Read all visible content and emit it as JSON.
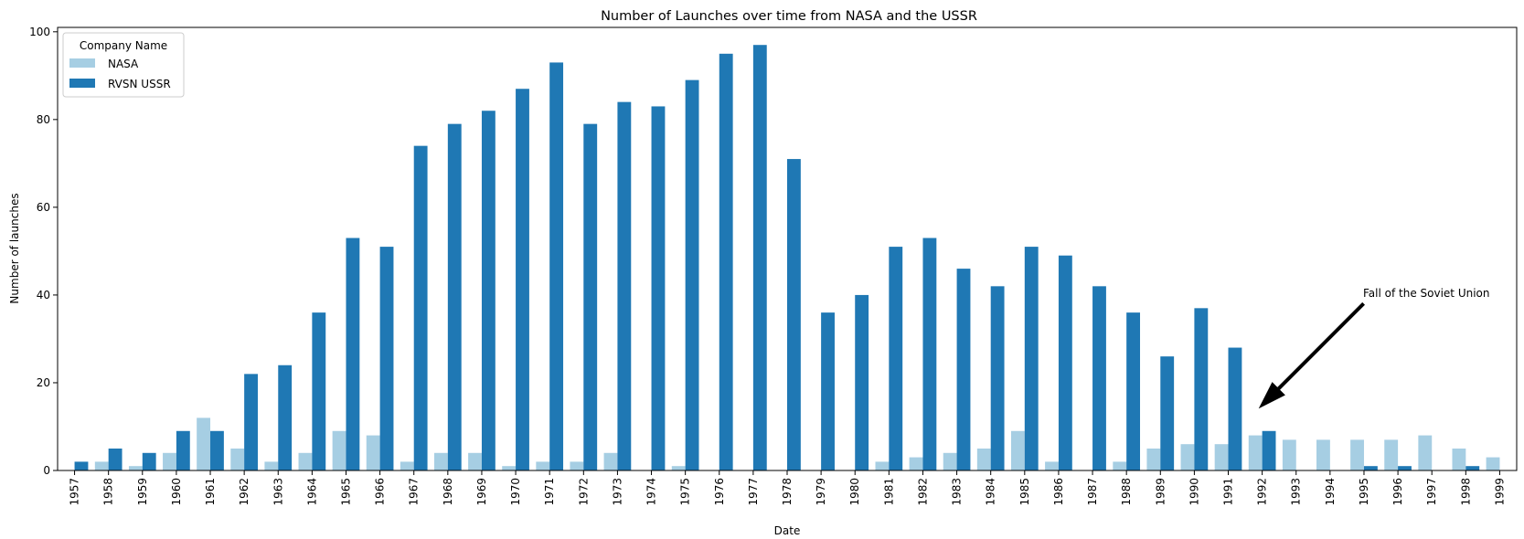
{
  "chart_data": {
    "type": "bar",
    "title": "Number of Launches over time from NASA and the USSR",
    "xlabel": "Date",
    "ylabel": "Number of launches",
    "ylim": [
      0,
      101
    ],
    "yticks": [
      "0",
      "20",
      "40",
      "60",
      "80",
      "100"
    ],
    "categories": [
      "1957",
      "1958",
      "1959",
      "1960",
      "1961",
      "1962",
      "1963",
      "1964",
      "1965",
      "1966",
      "1967",
      "1968",
      "1969",
      "1970",
      "1971",
      "1972",
      "1973",
      "1974",
      "1975",
      "1976",
      "1977",
      "1978",
      "1979",
      "1980",
      "1981",
      "1982",
      "1983",
      "1984",
      "1985",
      "1986",
      "1987",
      "1988",
      "1989",
      "1990",
      "1991",
      "1992",
      "1993",
      "1994",
      "1995",
      "1996",
      "1997",
      "1998",
      "1999"
    ],
    "series": [
      {
        "name": "NASA",
        "color": "#a6cee3",
        "values": [
          0,
          2,
          1,
          4,
          12,
          5,
          2,
          4,
          9,
          8,
          2,
          4,
          4,
          1,
          2,
          2,
          4,
          0,
          1,
          0,
          0,
          0,
          0,
          0,
          2,
          3,
          4,
          5,
          9,
          2,
          0,
          2,
          5,
          6,
          6,
          8,
          7,
          7,
          7,
          7,
          8,
          5,
          3
        ]
      },
      {
        "name": "RVSN USSR",
        "color": "#1f78b4",
        "values": [
          2,
          5,
          4,
          9,
          9,
          22,
          24,
          36,
          53,
          51,
          74,
          79,
          82,
          87,
          93,
          79,
          84,
          83,
          89,
          95,
          97,
          71,
          36,
          40,
          51,
          53,
          46,
          42,
          51,
          49,
          42,
          36,
          26,
          37,
          28,
          9,
          0,
          0,
          1,
          1,
          0,
          1,
          0
        ]
      }
    ],
    "legend": {
      "title": "Company Name",
      "placement": "top-left"
    },
    "grid": false,
    "annotation": {
      "text": "Fall of the Soviet Union",
      "points_to": {
        "category": "1992",
        "y": 15
      },
      "text_at": {
        "category": "1995",
        "y": 40
      }
    }
  }
}
